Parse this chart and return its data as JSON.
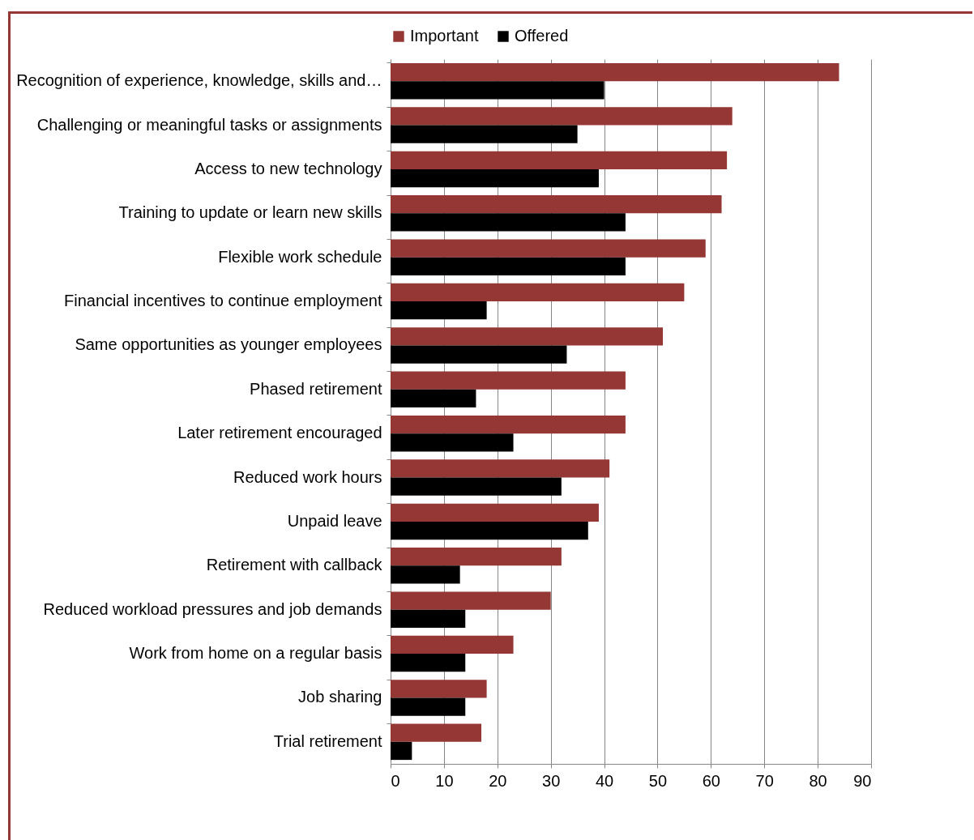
{
  "chart_data": {
    "type": "bar",
    "orientation": "horizontal",
    "categories": [
      "Recognition of experience, knowledge, skills and…",
      "Challenging or meaningful tasks or assignments",
      "Access to new technology",
      "Training to update or learn new skills",
      "Flexible work schedule",
      "Financial incentives to continue employment",
      "Same opportunities as younger employees",
      "Phased retirement",
      "Later retirement encouraged",
      "Reduced work hours",
      "Unpaid leave",
      "Retirement with callback",
      "Reduced workload pressures and job demands",
      "Work from home on a regular basis",
      "Job sharing",
      "Trial retirement"
    ],
    "series": [
      {
        "name": "Important",
        "color": "#953735",
        "values": [
          84,
          64,
          63,
          62,
          59,
          55,
          51,
          44,
          44,
          41,
          39,
          32,
          30,
          23,
          18,
          17
        ]
      },
      {
        "name": "Offered",
        "color": "#000000",
        "values": [
          40,
          35,
          39,
          44,
          44,
          18,
          33,
          16,
          23,
          32,
          37,
          13,
          14,
          14,
          14,
          4
        ]
      }
    ],
    "xlim": [
      0,
      90
    ],
    "xticks": [
      0,
      10,
      20,
      30,
      40,
      50,
      60,
      70,
      80,
      90
    ],
    "grid": "x",
    "legend": "top"
  }
}
